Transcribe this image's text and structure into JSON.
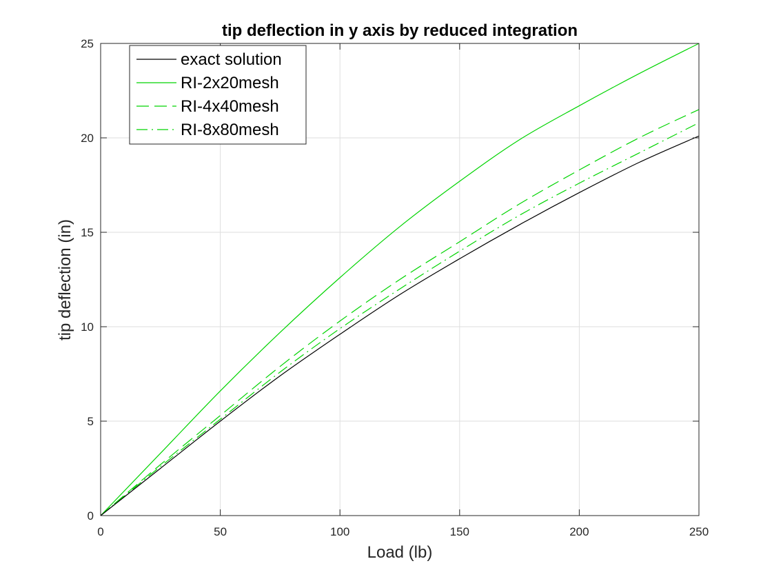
{
  "chart_data": {
    "type": "line",
    "title": "tip deflection in y axis by reduced integration",
    "xlabel": "Load (lb)",
    "ylabel": "tip deflection (in)",
    "xlim": [
      0,
      250
    ],
    "ylim": [
      0,
      25
    ],
    "xticks": [
      0,
      50,
      100,
      150,
      200,
      250
    ],
    "yticks": [
      0,
      5,
      10,
      15,
      20,
      25
    ],
    "xtick_labels": [
      "0",
      "50",
      "100",
      "150",
      "200",
      "250"
    ],
    "ytick_labels": [
      "0",
      "5",
      "10",
      "15",
      "20",
      "25"
    ],
    "grid": true,
    "legend_position": "top-left",
    "x": [
      0,
      25,
      50,
      75,
      100,
      125,
      150,
      175,
      200,
      225,
      250
    ],
    "series": [
      {
        "name": "exact solution",
        "color": "#000000",
        "line_style": "solid",
        "values": [
          0,
          2.5,
          5.0,
          7.4,
          9.6,
          11.7,
          13.6,
          15.4,
          17.1,
          18.7,
          20.1
        ]
      },
      {
        "name": "RI-2x20mesh",
        "color": "#00d400",
        "line_style": "solid",
        "values": [
          0,
          3.3,
          6.6,
          9.7,
          12.6,
          15.3,
          17.7,
          19.9,
          21.7,
          23.4,
          25.0
        ]
      },
      {
        "name": "RI-4x40mesh",
        "color": "#00d400",
        "line_style": "dashed",
        "values": [
          0,
          2.7,
          5.3,
          7.9,
          10.3,
          12.5,
          14.5,
          16.5,
          18.3,
          20.0,
          21.5
        ]
      },
      {
        "name": "RI-8x80mesh",
        "color": "#00d400",
        "line_style": "dash-dot",
        "values": [
          0,
          2.6,
          5.1,
          7.6,
          9.9,
          12.0,
          14.0,
          15.9,
          17.6,
          19.2,
          20.8
        ]
      }
    ]
  }
}
